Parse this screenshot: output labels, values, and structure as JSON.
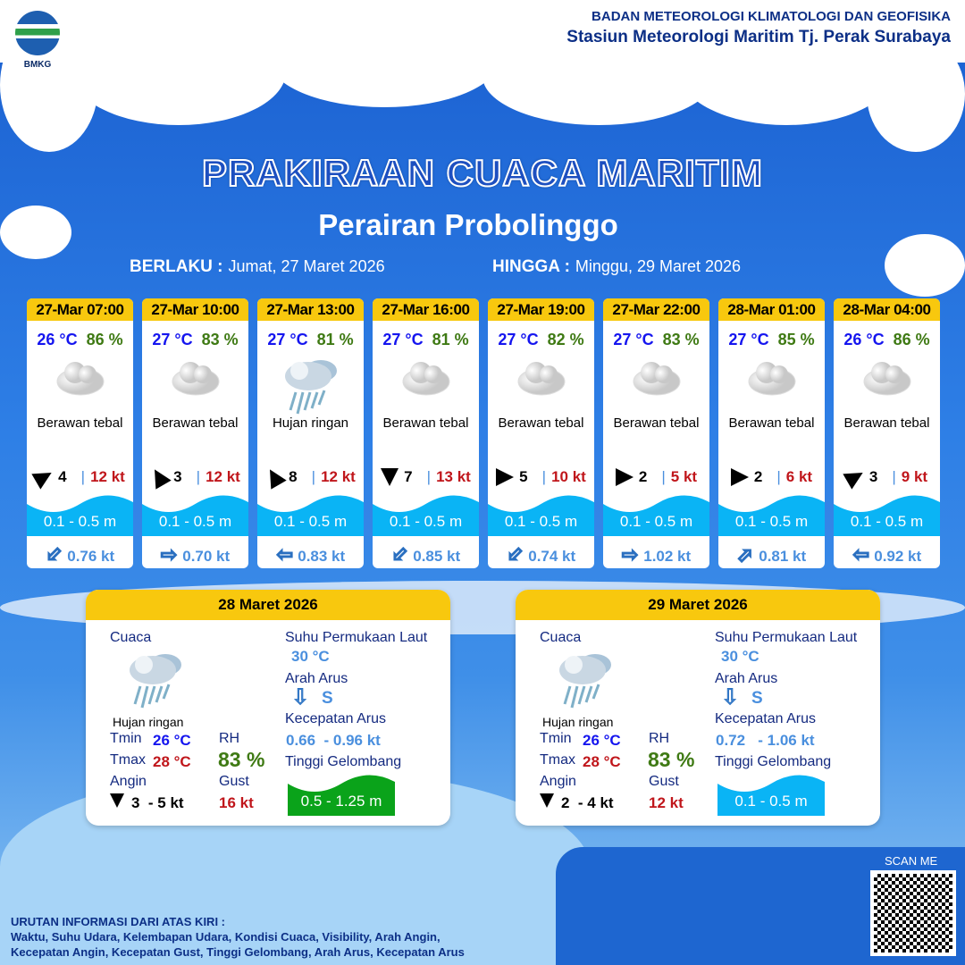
{
  "header": {
    "logo_text": "BMKG",
    "agency": "BADAN METEOROLOGI KLIMATOLOGI DAN GEOFISIKA",
    "station": "Stasiun Meteorologi Maritim Tj. Perak Surabaya"
  },
  "title": "PRAKIRAAN CUACA MARITIM",
  "subtitle": "Perairan Probolinggo",
  "period": {
    "from_label": "BERLAKU :",
    "from": "Jumat, 27 Maret 2026",
    "to_label": "HINGGA :",
    "to": "Minggu, 29 Maret 2026"
  },
  "forecasts": [
    {
      "time": "27-Mar 07:00",
      "temp": "26 °C",
      "rh": "86 %",
      "icon": "cloud-icon",
      "weather": "Berawan tebal",
      "wind_dir_deg": 60,
      "wind": "4",
      "gust": "12 kt",
      "wave": "0.1 - 0.5 m",
      "current_dir_deg": 225,
      "current": "0.76 kt"
    },
    {
      "time": "27-Mar 10:00",
      "temp": "27 °C",
      "rh": "83 %",
      "icon": "cloud-icon",
      "weather": "Berawan tebal",
      "wind_dir_deg": -30,
      "wind": "3",
      "gust": "12 kt",
      "wave": "0.1 - 0.5 m",
      "current_dir_deg": 90,
      "current": "0.70 kt"
    },
    {
      "time": "27-Mar 13:00",
      "temp": "27 °C",
      "rh": "81 %",
      "icon": "rain-cloud-icon",
      "weather": "Hujan ringan",
      "wind_dir_deg": -30,
      "wind": "8",
      "gust": "12 kt",
      "wave": "0.1 - 0.5 m",
      "current_dir_deg": 270,
      "current": "0.83 kt"
    },
    {
      "time": "27-Mar 16:00",
      "temp": "27 °C",
      "rh": "81 %",
      "icon": "cloud-icon",
      "weather": "Berawan tebal",
      "wind_dir_deg": 180,
      "wind": "7",
      "gust": "13 kt",
      "wave": "0.1 - 0.5 m",
      "current_dir_deg": 225,
      "current": "0.85 kt"
    },
    {
      "time": "27-Mar 19:00",
      "temp": "27 °C",
      "rh": "82 %",
      "icon": "cloud-icon",
      "weather": "Berawan tebal",
      "wind_dir_deg": 90,
      "wind": "5",
      "gust": "10 kt",
      "wave": "0.1 - 0.5 m",
      "current_dir_deg": 225,
      "current": "0.74 kt"
    },
    {
      "time": "27-Mar 22:00",
      "temp": "27 °C",
      "rh": "83 %",
      "icon": "cloud-icon",
      "weather": "Berawan tebal",
      "wind_dir_deg": 90,
      "wind": "2",
      "gust": "5 kt",
      "wave": "0.1 - 0.5 m",
      "current_dir_deg": 90,
      "current": "1.02 kt"
    },
    {
      "time": "28-Mar 01:00",
      "temp": "27 °C",
      "rh": "85 %",
      "icon": "cloud-icon",
      "weather": "Berawan tebal",
      "wind_dir_deg": 90,
      "wind": "2",
      "gust": "6 kt",
      "wave": "0.1 - 0.5 m",
      "current_dir_deg": 45,
      "current": "0.81 kt"
    },
    {
      "time": "28-Mar 04:00",
      "temp": "26 °C",
      "rh": "86 %",
      "icon": "cloud-icon",
      "weather": "Berawan tebal",
      "wind_dir_deg": 60,
      "wind": "3",
      "gust": "9 kt",
      "wave": "0.1 - 0.5 m",
      "current_dir_deg": 270,
      "current": "0.92 kt"
    }
  ],
  "labels": {
    "cuaca": "Cuaca",
    "sst": "Suhu Permukaan Laut",
    "arah_arus": "Arah Arus",
    "kec_arus": "Kecepatan Arus",
    "tinggi": "Tinggi Gelombang",
    "tmin": "Tmin",
    "tmax": "Tmax",
    "rh": "RH",
    "angin": "Angin",
    "gust": "Gust"
  },
  "days": [
    {
      "date": "28 Maret 2026",
      "weather": "Hujan ringan",
      "tmin": "26 °C",
      "tmax": "28 °C",
      "rh": "83 %",
      "wind_dir_deg": 180,
      "wind": "3  - 5 kt",
      "gust": "16 kt",
      "sst": "30 °C",
      "current_dir": "S",
      "current_speed": "0.66  - 0.96 kt",
      "wave": "0.5 - 1.25 m",
      "wave_color": "#0aa31a"
    },
    {
      "date": "29 Maret 2026",
      "weather": "Hujan ringan",
      "tmin": "26 °C",
      "tmax": "28 °C",
      "rh": "83 %",
      "wind_dir_deg": 180,
      "wind": "2  - 4 kt",
      "gust": "12 kt",
      "sst": "30 °C",
      "current_dir": "S",
      "current_speed": "0.72   - 1.06 kt",
      "wave": "0.1 - 0.5 m",
      "wave_color": "#0ab4f5"
    }
  ],
  "scan_label": "SCAN ME",
  "footer": {
    "line1": "URUTAN INFORMASI DARI ATAS KIRI :",
    "line2": "Waktu, Suhu Udara, Kelembapan Udara, Kondisi Cuaca, Visibility, Arah Angin,",
    "line3": "Kecepatan Angin, Kecepatan Gust, Tinggi Gelombang, Arah Arus, Kecepatan Arus"
  },
  "colors": {
    "header_yellow": "#f8c80e",
    "wave_blue": "#0ab4f5",
    "temp": "#1515ef",
    "rh": "#3f7a14",
    "gust": "#c0161b"
  }
}
